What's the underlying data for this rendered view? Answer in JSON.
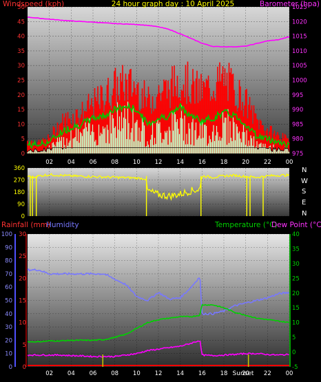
{
  "header": {
    "title": "24 hour graph day : 10 April 2025",
    "wind_label": "Windspeed (kph)",
    "baro_label": "Barometer (hpa)"
  },
  "direction_panel": {
    "compass": [
      "N",
      "W",
      "S",
      "E",
      "N"
    ]
  },
  "lower_header": {
    "rain_label": "Rainfall (mm)",
    "hum_label": "Humidity",
    "temp_label": "Temperature (°C)",
    "dew_label": "Dew Point (°C)"
  },
  "markers": {
    "sunrise": "",
    "sunset": "Sunset"
  },
  "colors": {
    "wind_gust": "#ff0000",
    "wind_avg": "#00c800",
    "wind_speed": "#c8ffc8",
    "barometer": "#ff00ff",
    "direction": "#ffff00",
    "humidity": "#7878ff",
    "temperature": "#00d200",
    "dew_point": "#ff00ff",
    "rain": "#ff0000",
    "sun_marker": "#c8c800"
  },
  "chart_data": [
    {
      "type": "line",
      "title": "24 hour graph day : 10 April 2025",
      "x_ticks": [
        "02",
        "04",
        "06",
        "08",
        "10",
        "12",
        "14",
        "16",
        "18",
        "20",
        "22",
        "00"
      ],
      "y_left": {
        "label": "Windspeed (kph)",
        "ticks": [
          "0",
          "5",
          "10",
          "15",
          "20",
          "25",
          "30",
          "35",
          "40",
          "45",
          "50"
        ],
        "range": [
          0,
          50
        ]
      },
      "y_right": {
        "label": "Barometer (hpa)",
        "ticks": [
          "975",
          "980",
          "985",
          "990",
          "995",
          "1000",
          "1005",
          "1010",
          "1015",
          "1020",
          "1025"
        ],
        "range": [
          975,
          1025
        ]
      },
      "series": [
        {
          "name": "Barometer (hpa)",
          "axis": "right",
          "x": [
            0,
            2,
            4,
            6,
            8,
            10,
            11,
            12,
            13,
            14,
            15,
            16,
            17,
            18,
            19,
            20,
            21,
            22,
            23,
            24
          ],
          "values": [
            1021.5,
            1020.8,
            1020.2,
            1019.8,
            1019.3,
            1019,
            1018.7,
            1018.2,
            1017.3,
            1015.8,
            1014.2,
            1012.6,
            1011.5,
            1011.4,
            1011.4,
            1011.6,
            1012.5,
            1013.4,
            1013.8,
            1014.8
          ]
        },
        {
          "axis": "left",
          "x": [
            0,
            1,
            2,
            3,
            4,
            5,
            6,
            7,
            8,
            9,
            10,
            11,
            12,
            13,
            14,
            15,
            16,
            17,
            18,
            19,
            20,
            21,
            22,
            23,
            24
          ],
          "values": [
            5,
            4,
            6,
            12,
            14,
            16,
            19,
            22,
            26,
            27,
            26,
            20,
            24,
            25,
            30,
            26,
            24,
            27,
            29,
            25,
            20,
            13,
            9,
            7,
            5
          ]
        },
        {
          "axis": "left",
          "x": [
            0,
            1,
            2,
            3,
            4,
            5,
            6,
            7,
            8,
            9,
            10,
            11,
            12,
            13,
            14,
            15,
            16,
            17,
            18,
            19,
            20,
            21,
            22,
            23,
            24
          ],
          "values": [
            3,
            3,
            4,
            7,
            9,
            10,
            12,
            13,
            15,
            16,
            15,
            10,
            12,
            13,
            16,
            13,
            11,
            12,
            14,
            13,
            10,
            6,
            5,
            4,
            3
          ]
        },
        {
          "axis": "left",
          "x": [
            0,
            1,
            2,
            3,
            4,
            5,
            6,
            7,
            8,
            9,
            10,
            11,
            12,
            13,
            14,
            15,
            16,
            17,
            18,
            19,
            20,
            21,
            22,
            23,
            24
          ],
          "values": [
            1,
            1,
            2,
            4,
            6,
            7,
            8,
            9,
            11,
            12,
            11,
            6,
            8,
            9,
            11,
            9,
            7,
            8,
            10,
            9,
            6,
            3,
            2,
            2,
            1
          ]
        }
      ]
    },
    {
      "type": "line",
      "y_left": {
        "ticks": [
          "360",
          "270",
          "180",
          "90",
          "0"
        ],
        "range": [
          0,
          360
        ]
      },
      "series": [
        {
          "axis": "left",
          "x": [
            0,
            0.6,
            1,
            2,
            4,
            6,
            8,
            10,
            10.8,
            11,
            12,
            13,
            14,
            15,
            15.8,
            16,
            17,
            18,
            19,
            20,
            21,
            22,
            23,
            24
          ],
          "values": [
            300,
            290,
            300,
            310,
            300,
            295,
            290,
            285,
            280,
            190,
            160,
            150,
            165,
            190,
            200,
            300,
            290,
            300,
            305,
            295,
            290,
            300,
            305,
            305
          ]
        }
      ]
    },
    {
      "type": "line",
      "y_left": {
        "label": "Humidity",
        "ticks": [
          "0",
          "10",
          "20",
          "30",
          "40",
          "50",
          "60",
          "70",
          "80",
          "90",
          "100"
        ],
        "range": [
          0,
          100
        ]
      },
      "y_rain": {
        "label": "Rainfall (mm)",
        "ticks": [
          "0",
          "5",
          "10",
          "15",
          "20",
          "25",
          "30"
        ],
        "range": [
          0,
          30
        ]
      },
      "y_right": {
        "label": "Temperature (°C)",
        "ticks": [
          "-5",
          "0",
          "5",
          "10",
          "15",
          "20",
          "25",
          "30",
          "35",
          "40"
        ],
        "range": [
          -5,
          40
        ]
      },
      "series": [
        {
          "name": "Humidity",
          "axis": "left",
          "x": [
            0,
            1,
            2,
            3,
            4,
            5,
            6,
            7,
            8,
            9,
            10,
            11,
            12,
            13,
            14,
            15,
            15.8,
            16,
            17,
            18,
            19,
            20,
            21,
            22,
            23,
            24
          ],
          "values": [
            73,
            73,
            70,
            70,
            70,
            70,
            70,
            70,
            66,
            62,
            53,
            50,
            56,
            51,
            52,
            60,
            68,
            40,
            40,
            42,
            46,
            48,
            50,
            52,
            55,
            56
          ]
        },
        {
          "name": "Temperature (°C)",
          "axis": "right",
          "x": [
            0,
            1,
            2,
            3,
            4,
            5,
            6,
            7,
            8,
            9,
            10,
            11,
            12,
            13,
            14,
            15,
            15.8,
            16,
            17,
            18,
            19,
            20,
            21,
            22,
            23,
            24
          ],
          "values": [
            3.5,
            3.5,
            3.8,
            3.8,
            4,
            4,
            4,
            4.2,
            5,
            6,
            8,
            10,
            11,
            11.5,
            12,
            12,
            12.5,
            16,
            16,
            15,
            13.5,
            12.5,
            11.5,
            11,
            10.5,
            10
          ]
        },
        {
          "name": "Dew Point (°C)",
          "axis": "right",
          "x": [
            0,
            1,
            2,
            3,
            4,
            5,
            6,
            7,
            8,
            9,
            10,
            11,
            12,
            13,
            14,
            15,
            15.8,
            16,
            17,
            18,
            19,
            20,
            21,
            22,
            23,
            24
          ],
          "values": [
            -1,
            -1,
            -1,
            -1,
            -1.2,
            -1.3,
            -1.5,
            -1.5,
            -1.5,
            -1,
            -0.5,
            0.5,
            1,
            1.5,
            2,
            3,
            4,
            -1,
            -1.2,
            -1,
            -0.8,
            -0.5,
            -0.5,
            -0.8,
            -1,
            -0.8
          ]
        },
        {
          "name": "Rainfall (mm)",
          "axis": "rain",
          "x": [
            0,
            24
          ],
          "values": [
            0,
            0
          ]
        }
      ]
    }
  ]
}
